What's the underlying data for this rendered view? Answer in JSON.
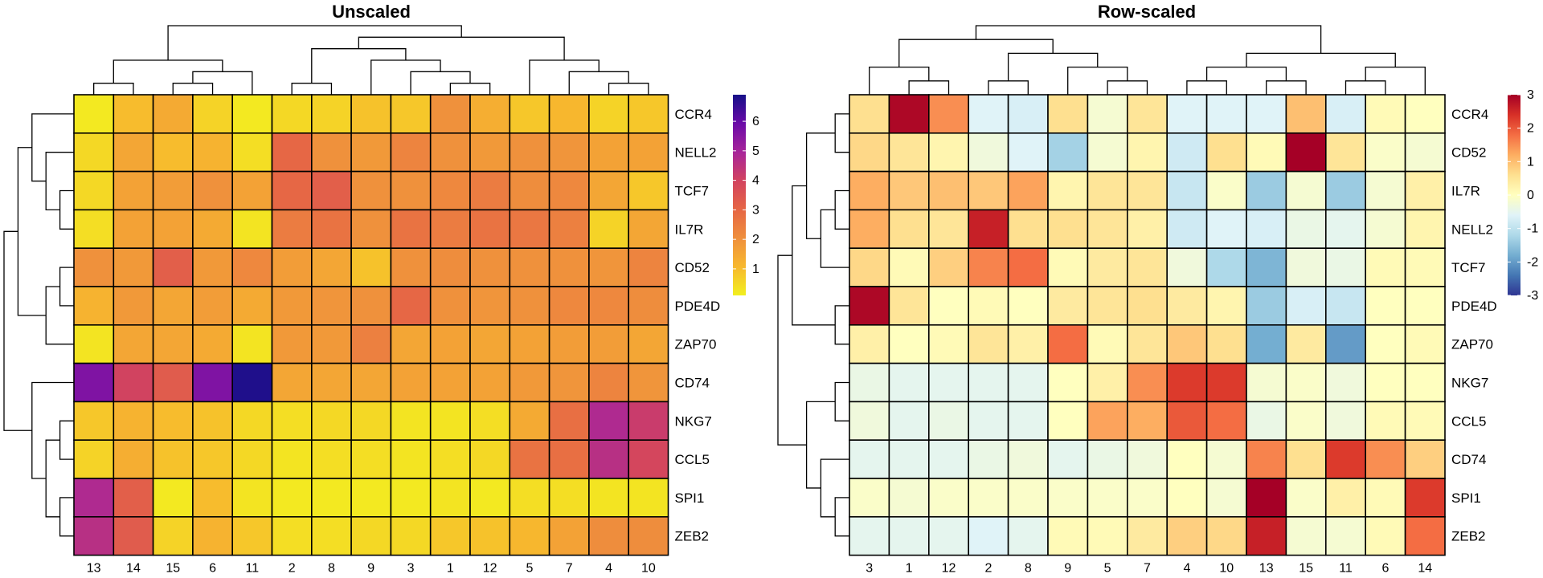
{
  "chart_data": [
    {
      "type": "heatmap",
      "title": "Unscaled",
      "rows": [
        "CCR4",
        "NELL2",
        "TCF7",
        "IL7R",
        "CD52",
        "PDE4D",
        "ZAP70",
        "CD74",
        "NKG7",
        "CCL5",
        "SPI1",
        "ZEB2"
      ],
      "columns": [
        "13",
        "14",
        "15",
        "6",
        "11",
        "2",
        "8",
        "9",
        "3",
        "1",
        "12",
        "5",
        "7",
        "4",
        "10"
      ],
      "values": [
        [
          0.2,
          1.0,
          1.4,
          0.6,
          0.2,
          0.5,
          0.6,
          0.9,
          0.8,
          2.0,
          1.3,
          0.8,
          1.1,
          0.6,
          0.8
        ],
        [
          0.5,
          1.5,
          1.0,
          1.2,
          0.4,
          3.0,
          2.0,
          1.8,
          2.3,
          2.0,
          1.8,
          2.0,
          1.9,
          1.6,
          1.6
        ],
        [
          0.5,
          1.6,
          1.7,
          2.0,
          1.6,
          3.0,
          3.2,
          2.0,
          2.0,
          2.2,
          2.5,
          2.1,
          2.2,
          1.5,
          0.8
        ],
        [
          0.4,
          1.6,
          1.6,
          1.4,
          0.3,
          2.5,
          2.7,
          2.0,
          2.7,
          2.5,
          2.7,
          2.6,
          2.4,
          0.6,
          1.5
        ],
        [
          2.0,
          1.8,
          3.2,
          1.8,
          2.2,
          1.7,
          1.5,
          0.9,
          2.0,
          2.1,
          2.0,
          2.0,
          2.0,
          1.9,
          2.3
        ],
        [
          1.2,
          1.8,
          1.5,
          1.7,
          1.4,
          1.8,
          1.9,
          2.0,
          3.0,
          2.0,
          1.9,
          2.0,
          2.2,
          2.2,
          2.1
        ],
        [
          0.3,
          1.5,
          1.5,
          1.4,
          0.3,
          1.8,
          1.8,
          2.4,
          1.5,
          1.6,
          1.5,
          1.6,
          1.7,
          1.7,
          1.5
        ],
        [
          5.6,
          4.0,
          3.3,
          5.6,
          6.8,
          1.5,
          1.5,
          1.5,
          1.6,
          1.6,
          1.6,
          1.8,
          1.9,
          2.3,
          1.9
        ],
        [
          0.8,
          1.2,
          1.0,
          0.9,
          0.5,
          0.4,
          0.5,
          0.5,
          0.3,
          0.3,
          0.4,
          1.4,
          2.8,
          4.8,
          4.2
        ],
        [
          0.6,
          1.3,
          0.9,
          0.8,
          0.5,
          0.3,
          0.4,
          0.4,
          0.3,
          0.4,
          0.5,
          2.7,
          2.8,
          4.6,
          3.9
        ],
        [
          4.8,
          3.2,
          0.2,
          1.0,
          0.3,
          0.2,
          0.2,
          0.2,
          0.2,
          0.3,
          0.2,
          0.4,
          0.4,
          0.3,
          0.3
        ],
        [
          4.6,
          3.3,
          0.6,
          1.2,
          0.8,
          0.4,
          0.4,
          0.5,
          0.5,
          0.8,
          0.9,
          1.1,
          1.6,
          2.1,
          2.1
        ]
      ],
      "colorbar": {
        "ticks": [
          "1",
          "2",
          "3",
          "4",
          "5",
          "6"
        ],
        "range": [
          0.1,
          6.9
        ]
      },
      "palette": [
        "#f2ef1f",
        "#f7b82e",
        "#ef8f3d",
        "#e66645",
        "#d2435f",
        "#a8259a",
        "#6a0aa8",
        "#161088"
      ]
    },
    {
      "type": "heatmap",
      "title": "Row-scaled",
      "rows": [
        "CCR4",
        "CD52",
        "IL7R",
        "NELL2",
        "TCF7",
        "PDE4D",
        "ZAP70",
        "NKG7",
        "CCL5",
        "CD74",
        "SPI1",
        "ZEB2"
      ],
      "columns": [
        "3",
        "1",
        "12",
        "2",
        "8",
        "9",
        "5",
        "7",
        "4",
        "10",
        "13",
        "15",
        "11",
        "6",
        "14"
      ],
      "values": [
        [
          0.6,
          2.9,
          1.5,
          -0.6,
          -0.7,
          0.6,
          -0.2,
          0.5,
          -0.6,
          -0.6,
          -0.6,
          1.0,
          -0.7,
          0.1,
          0.0
        ],
        [
          0.7,
          0.5,
          0.2,
          -0.3,
          -0.6,
          -1.3,
          -0.2,
          0.2,
          -0.8,
          0.6,
          0.1,
          3.0,
          0.5,
          -0.1,
          -0.2
        ],
        [
          1.2,
          0.9,
          1.0,
          0.9,
          1.3,
          0.2,
          0.5,
          0.5,
          -0.9,
          -0.1,
          -1.4,
          -0.2,
          -1.4,
          -0.2,
          0.3
        ],
        [
          1.2,
          0.6,
          0.5,
          2.6,
          0.6,
          0.6,
          0.5,
          0.3,
          -0.8,
          -0.6,
          -0.7,
          -0.4,
          -0.5,
          -0.2,
          0.2
        ],
        [
          0.7,
          0.1,
          0.8,
          1.6,
          1.8,
          0.1,
          0.4,
          0.5,
          -0.3,
          -1.2,
          -1.7,
          -0.3,
          -0.4,
          0.1,
          0.1
        ],
        [
          2.9,
          0.5,
          0.0,
          0.1,
          0.0,
          0.4,
          0.5,
          0.6,
          0.4,
          0.2,
          -1.4,
          -0.7,
          -0.9,
          0.0,
          0.0
        ],
        [
          0.3,
          0.0,
          0.1,
          0.5,
          0.3,
          1.8,
          0.1,
          0.5,
          0.9,
          0.6,
          -1.8,
          0.4,
          -2.0,
          0.0,
          0.1
        ],
        [
          -0.4,
          -0.5,
          -0.5,
          -0.5,
          -0.5,
          0.0,
          0.3,
          1.5,
          2.3,
          2.3,
          -0.2,
          -0.1,
          -0.3,
          0.0,
          0.0
        ],
        [
          -0.3,
          -0.5,
          -0.4,
          -0.5,
          -0.5,
          0.0,
          1.3,
          1.2,
          2.0,
          1.8,
          -0.4,
          -0.1,
          -0.3,
          0.1,
          0.1
        ],
        [
          -0.5,
          -0.5,
          -0.5,
          -0.4,
          -0.3,
          -0.5,
          -0.4,
          -0.3,
          0.0,
          -0.2,
          1.6,
          0.6,
          2.3,
          1.5,
          0.8
        ],
        [
          -0.1,
          -0.2,
          -0.1,
          -0.1,
          -0.1,
          -0.1,
          -0.1,
          -0.1,
          0.0,
          -0.2,
          3.0,
          -0.1,
          0.3,
          0.1,
          2.3
        ],
        [
          -0.5,
          -0.5,
          -0.5,
          -0.6,
          -0.5,
          0.1,
          0.1,
          0.4,
          0.8,
          0.7,
          2.6,
          -0.2,
          -0.2,
          0.1,
          1.8
        ]
      ],
      "colorbar": {
        "ticks": [
          "3",
          "2",
          "1",
          "0",
          "-1",
          "-2",
          "-3"
        ],
        "range": [
          -3,
          3
        ]
      },
      "palette": [
        "#2f3593",
        "#4476b3",
        "#74aed1",
        "#aed9e9",
        "#e0f3f8",
        "#ffffbf",
        "#fee090",
        "#fdae61",
        "#f46d43",
        "#d73027",
        "#a50026"
      ]
    }
  ]
}
